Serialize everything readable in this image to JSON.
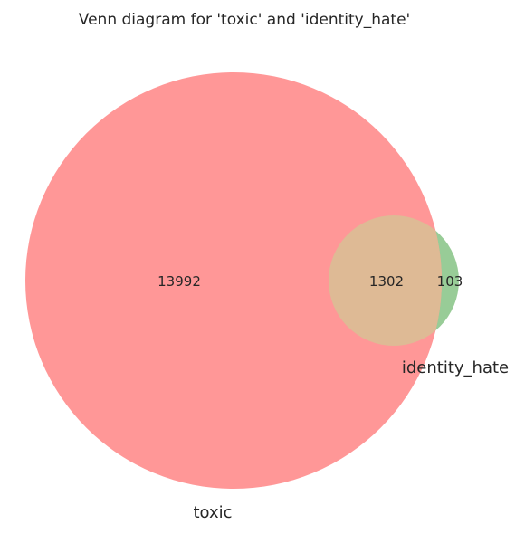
{
  "diagram": {
    "type": "venn2",
    "title": "Venn diagram for 'toxic' and 'identity_hate'",
    "sets": [
      {
        "name": "toxic",
        "color": "#ff9797"
      },
      {
        "name": "identity_hate",
        "color": "#98cc97"
      }
    ],
    "overlap_color": "#deba95",
    "region_counts": {
      "toxic_only": "13992",
      "both": "1302",
      "identity_hate_only": "103"
    }
  }
}
